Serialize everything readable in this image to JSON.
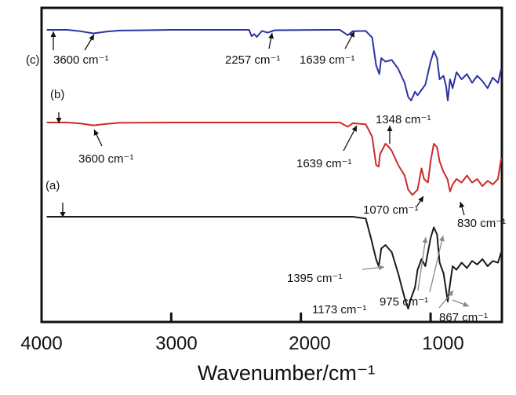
{
  "chart_data": {
    "type": "line",
    "xlabel": "Wavenumber/cm⁻¹",
    "ylabel": "",
    "xlim": [
      4000,
      450
    ],
    "x_reversed": true,
    "x_ticks": [
      4000,
      3000,
      2000,
      1000
    ],
    "x_tick_labels": [
      "4000",
      "3000",
      "2000",
      "1000"
    ],
    "grid": false,
    "legend": "none",
    "series": [
      {
        "name": "(c)",
        "color": "#2d33a3",
        "points": [
          [
            3960,
            0.0
          ],
          [
            3800,
            0.0
          ],
          [
            3700,
            -0.04
          ],
          [
            3600,
            -0.1
          ],
          [
            3500,
            -0.05
          ],
          [
            3400,
            -0.02
          ],
          [
            3200,
            -0.01
          ],
          [
            3000,
            0.0
          ],
          [
            2400,
            0.0
          ],
          [
            2380,
            -0.18
          ],
          [
            2360,
            -0.12
          ],
          [
            2340,
            -0.2
          ],
          [
            2300,
            -0.03
          ],
          [
            2257,
            -0.08
          ],
          [
            2200,
            -0.01
          ],
          [
            1800,
            0.0
          ],
          [
            1700,
            0.0
          ],
          [
            1639,
            -0.15
          ],
          [
            1600,
            -0.04
          ],
          [
            1500,
            -0.03
          ],
          [
            1450,
            -0.22
          ],
          [
            1420,
            -1.0
          ],
          [
            1395,
            -1.25
          ],
          [
            1380,
            -0.8
          ],
          [
            1348,
            -0.9
          ],
          [
            1300,
            -0.85
          ],
          [
            1250,
            -1.1
          ],
          [
            1200,
            -1.5
          ],
          [
            1173,
            -1.9
          ],
          [
            1150,
            -2.0
          ],
          [
            1120,
            -1.75
          ],
          [
            1100,
            -1.85
          ],
          [
            1070,
            -1.7
          ],
          [
            1040,
            -1.55
          ],
          [
            1000,
            -0.9
          ],
          [
            975,
            -0.6
          ],
          [
            950,
            -0.8
          ],
          [
            930,
            -1.4
          ],
          [
            900,
            -1.3
          ],
          [
            880,
            -1.6
          ],
          [
            867,
            -2.0
          ],
          [
            850,
            -1.4
          ],
          [
            830,
            -1.65
          ],
          [
            800,
            -1.2
          ],
          [
            760,
            -1.4
          ],
          [
            720,
            -1.25
          ],
          [
            680,
            -1.5
          ],
          [
            640,
            -1.3
          ],
          [
            600,
            -1.45
          ],
          [
            560,
            -1.65
          ],
          [
            520,
            -1.35
          ],
          [
            480,
            -1.5
          ],
          [
            455,
            -1.1
          ]
        ]
      },
      {
        "name": "(b)",
        "color": "#cc2a2a",
        "points": [
          [
            3960,
            0.0
          ],
          [
            3800,
            0.0
          ],
          [
            3700,
            -0.03
          ],
          [
            3600,
            -0.08
          ],
          [
            3500,
            -0.04
          ],
          [
            3400,
            -0.01
          ],
          [
            3000,
            0.0
          ],
          [
            2000,
            0.0
          ],
          [
            1700,
            0.0
          ],
          [
            1639,
            -0.12
          ],
          [
            1600,
            -0.02
          ],
          [
            1500,
            -0.05
          ],
          [
            1450,
            -0.4
          ],
          [
            1420,
            -1.2
          ],
          [
            1400,
            -1.25
          ],
          [
            1390,
            -0.9
          ],
          [
            1348,
            -0.6
          ],
          [
            1320,
            -0.7
          ],
          [
            1300,
            -0.8
          ],
          [
            1250,
            -1.2
          ],
          [
            1200,
            -1.5
          ],
          [
            1173,
            -1.9
          ],
          [
            1140,
            -2.05
          ],
          [
            1100,
            -1.9
          ],
          [
            1070,
            -1.3
          ],
          [
            1050,
            -1.6
          ],
          [
            1020,
            -1.7
          ],
          [
            1000,
            -1.1
          ],
          [
            975,
            -0.6
          ],
          [
            950,
            -0.7
          ],
          [
            930,
            -1.1
          ],
          [
            900,
            -1.4
          ],
          [
            870,
            -1.6
          ],
          [
            850,
            -1.95
          ],
          [
            830,
            -1.75
          ],
          [
            800,
            -1.6
          ],
          [
            760,
            -1.7
          ],
          [
            720,
            -1.5
          ],
          [
            680,
            -1.7
          ],
          [
            640,
            -1.6
          ],
          [
            600,
            -1.8
          ],
          [
            560,
            -1.65
          ],
          [
            520,
            -1.75
          ],
          [
            480,
            -1.6
          ],
          [
            455,
            -1.0
          ]
        ]
      },
      {
        "name": "(a)",
        "color": "#1a1a1a",
        "points": [
          [
            3960,
            0.0
          ],
          [
            3500,
            0.0
          ],
          [
            3000,
            0.0
          ],
          [
            2800,
            0.0
          ],
          [
            2000,
            0.0
          ],
          [
            1700,
            0.0
          ],
          [
            1600,
            0.0
          ],
          [
            1500,
            -0.05
          ],
          [
            1460,
            -0.6
          ],
          [
            1420,
            -1.2
          ],
          [
            1400,
            -1.4
          ],
          [
            1395,
            -1.3
          ],
          [
            1380,
            -0.9
          ],
          [
            1348,
            -0.8
          ],
          [
            1300,
            -1.0
          ],
          [
            1250,
            -1.6
          ],
          [
            1200,
            -2.3
          ],
          [
            1173,
            -2.6
          ],
          [
            1150,
            -2.3
          ],
          [
            1120,
            -2.0
          ],
          [
            1100,
            -1.5
          ],
          [
            1070,
            -1.2
          ],
          [
            1040,
            -1.4
          ],
          [
            1000,
            -0.6
          ],
          [
            975,
            -0.3
          ],
          [
            950,
            -0.5
          ],
          [
            930,
            -1.3
          ],
          [
            900,
            -1.6
          ],
          [
            867,
            -2.4
          ],
          [
            850,
            -1.9
          ],
          [
            830,
            -1.4
          ],
          [
            800,
            -1.5
          ],
          [
            760,
            -1.3
          ],
          [
            720,
            -1.45
          ],
          [
            680,
            -1.25
          ],
          [
            640,
            -1.35
          ],
          [
            600,
            -1.2
          ],
          [
            560,
            -1.4
          ],
          [
            520,
            -1.25
          ],
          [
            480,
            -1.3
          ],
          [
            455,
            -1.0
          ]
        ]
      }
    ],
    "annotations": [
      "(c)",
      "(b)",
      "(a)",
      "3600 cm⁻¹",
      "2257 cm⁻¹",
      "1639 cm⁻¹",
      "3600 cm⁻¹",
      "1639 cm⁻¹",
      "1348 cm⁻¹",
      "1070 cm⁻¹",
      "830 cm⁻¹",
      "1395 cm⁻¹",
      "1173 cm⁻¹",
      "975 cm⁻¹",
      "867 cm⁻¹"
    ]
  }
}
